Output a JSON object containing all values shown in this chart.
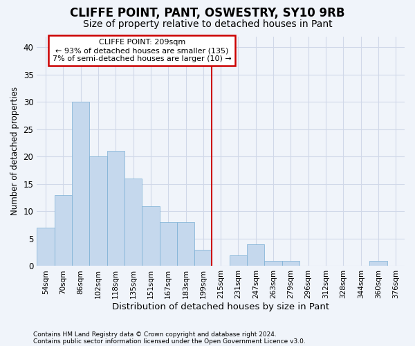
{
  "title": "CLIFFE POINT, PANT, OSWESTRY, SY10 9RB",
  "subtitle": "Size of property relative to detached houses in Pant",
  "xlabel": "Distribution of detached houses by size in Pant",
  "ylabel": "Number of detached properties",
  "footnote1": "Contains HM Land Registry data © Crown copyright and database right 2024.",
  "footnote2": "Contains public sector information licensed under the Open Government Licence v3.0.",
  "bin_labels": [
    "54sqm",
    "70sqm",
    "86sqm",
    "102sqm",
    "118sqm",
    "135sqm",
    "151sqm",
    "167sqm",
    "183sqm",
    "199sqm",
    "215sqm",
    "231sqm",
    "247sqm",
    "263sqm",
    "279sqm",
    "296sqm",
    "312sqm",
    "328sqm",
    "344sqm",
    "360sqm",
    "376sqm"
  ],
  "bar_values": [
    7,
    13,
    30,
    20,
    21,
    16,
    11,
    8,
    8,
    3,
    0,
    2,
    4,
    1,
    1,
    0,
    0,
    0,
    0,
    1,
    0
  ],
  "bar_color": "#c5d8ed",
  "bar_edge_color": "#7aafd4",
  "vline_color": "#cc0000",
  "annotation_title": "CLIFFE POINT: 209sqm",
  "annotation_line2": "← 93% of detached houses are smaller (135)",
  "annotation_line3": "7% of semi-detached houses are larger (10) →",
  "annotation_box_color": "#cc0000",
  "annotation_fill": "white",
  "ylim": [
    0,
    42
  ],
  "yticks": [
    0,
    5,
    10,
    15,
    20,
    25,
    30,
    35,
    40
  ],
  "bg_color": "#f0f4fa",
  "plot_bg_color": "#f0f4fa",
  "title_fontsize": 12,
  "subtitle_fontsize": 10,
  "grid_color": "#d0d8e8"
}
